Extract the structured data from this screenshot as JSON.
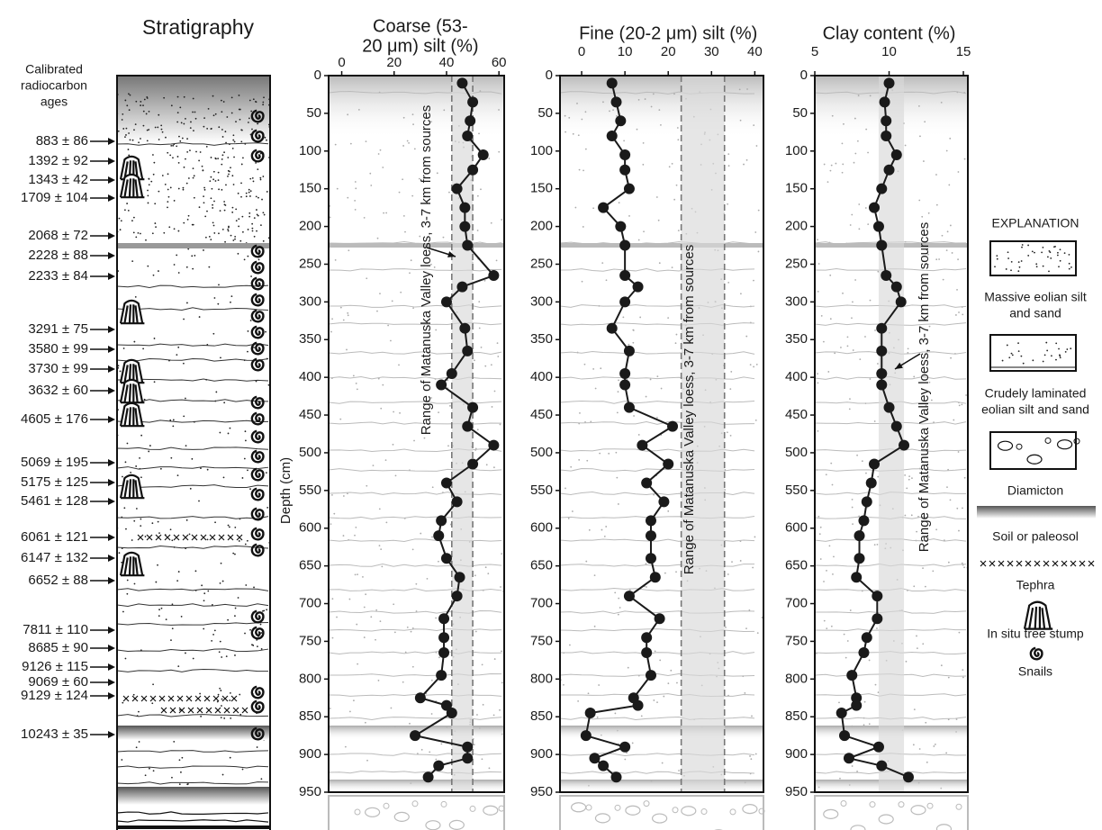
{
  "chart_data": [
    {
      "type": "line",
      "title": [
        "Coarse (53-",
        "20 μm) silt (%)"
      ],
      "ylabel": "Depth (cm)",
      "xlim": [
        -5,
        62
      ],
      "xticks": [
        0,
        20,
        40,
        60
      ],
      "ylim": [
        0,
        950
      ],
      "yticks": [
        0,
        50,
        100,
        150,
        200,
        250,
        300,
        350,
        400,
        450,
        500,
        550,
        600,
        650,
        700,
        750,
        800,
        850,
        900,
        950
      ],
      "range": [
        42,
        50
      ],
      "range_dashed": true,
      "color": "#1a1a1a",
      "annotation": "Range of Matanuska Valley loess, 3-7 km from sources",
      "depth": [
        10,
        35,
        60,
        80,
        105,
        125,
        150,
        175,
        200,
        225,
        265,
        280,
        300,
        335,
        365,
        395,
        410,
        440,
        465,
        490,
        515,
        540,
        565,
        590,
        610,
        640,
        665,
        690,
        720,
        745,
        765,
        795,
        825,
        835,
        845,
        875,
        890,
        905,
        915,
        930
      ],
      "values": [
        46,
        50,
        49,
        48,
        54,
        50,
        44,
        47,
        47,
        48,
        58,
        46,
        40,
        47,
        48,
        42,
        38,
        50,
        48,
        58,
        50,
        40,
        44,
        38,
        37,
        40,
        45,
        44,
        39,
        39,
        39,
        38,
        30,
        40,
        42,
        28,
        48,
        48,
        37,
        33
      ]
    },
    {
      "type": "line",
      "title": [
        "Fine (20-2 μm) silt (%)"
      ],
      "xlim": [
        -5,
        42
      ],
      "xticks": [
        0,
        10,
        20,
        30,
        40
      ],
      "ylim": [
        0,
        950
      ],
      "yticks": [
        0,
        50,
        100,
        150,
        200,
        250,
        300,
        350,
        400,
        450,
        500,
        550,
        600,
        650,
        700,
        750,
        800,
        850,
        900,
        950
      ],
      "range": [
        23,
        33
      ],
      "range_dashed": true,
      "color": "#1a1a1a",
      "annotation": "Range of Matanuska Valley loess, 3-7 km from sources",
      "depth": [
        10,
        35,
        60,
        80,
        105,
        125,
        150,
        175,
        200,
        225,
        265,
        280,
        300,
        335,
        365,
        395,
        410,
        440,
        465,
        490,
        515,
        540,
        565,
        590,
        610,
        640,
        665,
        690,
        720,
        745,
        765,
        795,
        825,
        835,
        845,
        875,
        890,
        905,
        915,
        930
      ],
      "values": [
        7,
        8,
        9,
        7,
        10,
        10,
        11,
        5,
        9,
        10,
        10,
        13,
        10,
        7,
        11,
        10,
        10,
        11,
        21,
        14,
        20,
        15,
        19,
        16,
        16,
        16,
        17,
        11,
        18,
        15,
        15,
        16,
        12,
        13,
        2,
        1,
        10,
        3,
        5,
        8
      ]
    },
    {
      "type": "line",
      "title": [
        "Clay content (%)"
      ],
      "xlim": [
        5,
        15.3
      ],
      "xticks": [
        5,
        10,
        15
      ],
      "ylim": [
        0,
        950
      ],
      "yticks": [
        0,
        50,
        100,
        150,
        200,
        250,
        300,
        350,
        400,
        450,
        500,
        550,
        600,
        650,
        700,
        750,
        800,
        850,
        900,
        950
      ],
      "range": [
        9.3,
        11
      ],
      "range_dashed": false,
      "color": "#1a1a1a",
      "annotation": "Range of Matanuska Valley loess, 3-7 km from sources",
      "depth": [
        10,
        35,
        60,
        80,
        105,
        125,
        150,
        175,
        200,
        225,
        265,
        280,
        300,
        335,
        365,
        395,
        410,
        440,
        465,
        490,
        515,
        540,
        565,
        590,
        610,
        640,
        665,
        690,
        720,
        745,
        765,
        795,
        825,
        835,
        845,
        875,
        890,
        905,
        915,
        930
      ],
      "values": [
        10,
        9.7,
        9.8,
        9.8,
        10.5,
        10,
        9.5,
        9,
        9.3,
        9.5,
        9.8,
        10.5,
        10.8,
        9.5,
        9.5,
        9.5,
        9.5,
        10,
        10.5,
        11,
        9,
        8.8,
        8.5,
        8.3,
        8,
        8,
        7.8,
        9.2,
        9.2,
        8.5,
        8.3,
        7.5,
        7.8,
        7.8,
        6.8,
        7,
        9.3,
        7.3,
        9.5,
        11.3
      ]
    }
  ],
  "stratigraphy": {
    "title": "Stratigraphy",
    "ages_heading": [
      "Calibrated",
      "radiocarbon",
      "ages"
    ],
    "ages": [
      "883 ± 86",
      "1392 ± 92",
      "1343 ± 42",
      "1709 ± 104",
      "2068 ± 72",
      "2228 ± 88",
      "2233 ± 84",
      "3291 ± 75",
      "3580 ± 99",
      "3730 ± 99",
      "3632 ± 60",
      "4605 ± 176",
      "5069 ± 195",
      "5175 ± 125",
      "5461 ± 128",
      "6061 ± 121",
      "6147 ± 132",
      "6652 ± 88",
      "7811 ± 110",
      "8685 ± 90",
      "9126 ± 115",
      "9069 ± 60",
      "9129 ± 124",
      "10243 ± 35"
    ]
  },
  "legend": {
    "title": "EXPLANATION",
    "items": [
      {
        "lines": [
          "Massive eolian silt",
          "and sand"
        ]
      },
      {
        "lines": [
          "Crudely laminated",
          "eolian silt and sand"
        ]
      },
      {
        "lines": [
          "Diamicton"
        ]
      },
      {
        "lines": [
          "Soil or paleosol"
        ]
      },
      {
        "lines": [
          "Tephra"
        ]
      },
      {
        "lines": [
          "In situ tree stump"
        ]
      },
      {
        "lines": [
          "Snails"
        ]
      }
    ]
  }
}
